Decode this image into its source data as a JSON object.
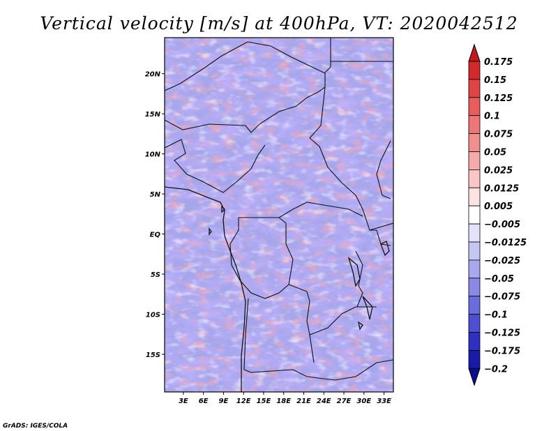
{
  "chart_data": {
    "type": "heatmap",
    "title": "Vertical velocity [m/s] at 400hPa, VT: 2020042512",
    "xlabel": "",
    "ylabel": "",
    "x_ticks": [
      {
        "value": 3,
        "label": "3E"
      },
      {
        "value": 6,
        "label": "6E"
      },
      {
        "value": 9,
        "label": "9E"
      },
      {
        "value": 12,
        "label": "12E"
      },
      {
        "value": 15,
        "label": "15E"
      },
      {
        "value": 18,
        "label": "18E"
      },
      {
        "value": 21,
        "label": "21E"
      },
      {
        "value": 24,
        "label": "24E"
      },
      {
        "value": 27,
        "label": "27E"
      },
      {
        "value": 30,
        "label": "30E"
      },
      {
        "value": 33,
        "label": "33E"
      }
    ],
    "y_ticks": [
      {
        "value": 20,
        "label": "20N"
      },
      {
        "value": 15,
        "label": "15N"
      },
      {
        "value": 10,
        "label": "10N"
      },
      {
        "value": 5,
        "label": "5N"
      },
      {
        "value": 0,
        "label": "EQ"
      },
      {
        "value": -5,
        "label": "5S"
      },
      {
        "value": -10,
        "label": "10S"
      },
      {
        "value": -15,
        "label": "15S"
      }
    ],
    "xlim": [
      0.2,
      34.4
    ],
    "ylim": [
      -19.7,
      24.5
    ],
    "colorbar": {
      "labels": [
        "0.175",
        "0.15",
        "0.125",
        "0.1",
        "0.075",
        "0.05",
        "0.025",
        "0.0125",
        "0.005",
        "−0.005",
        "−0.0125",
        "−0.025",
        "−0.05",
        "−0.075",
        "−0.1",
        "−0.125",
        "−0.175",
        "−0.2"
      ],
      "colors": [
        "#c21818",
        "#d22a2a",
        "#e04444",
        "#e85e5e",
        "#ee7676",
        "#f29090",
        "#f6aaaa",
        "#f9c6c6",
        "#fce2e2",
        "#ffffff",
        "#e2e2fa",
        "#c6c6f4",
        "#a8a8ee",
        "#8a8ae6",
        "#6c6cdc",
        "#4e4ed0",
        "#3030c0",
        "#1a1aa8",
        "#0c0c8c"
      ]
    },
    "credit": "GrADS: IGES/COLA"
  }
}
